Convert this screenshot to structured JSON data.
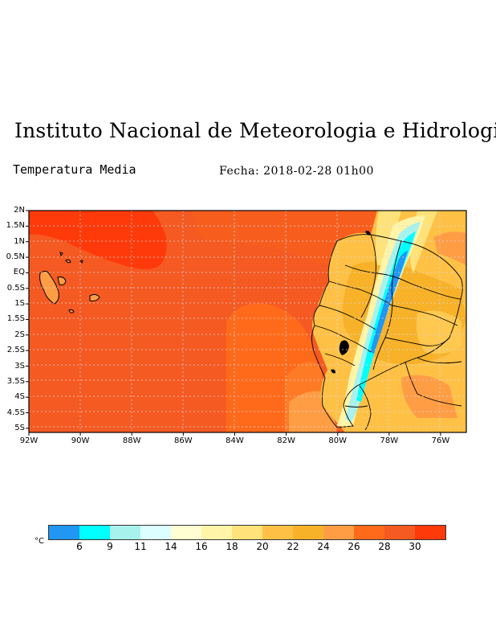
{
  "header": {
    "title": "Instituto Nacional de Meteorologia e Hidrologia",
    "subtitle": "Temperatura Media",
    "date": "Fecha: 2018-02-28 01h00"
  },
  "map": {
    "lat_ticks": [
      "2N",
      "1.5N",
      "1N",
      "0.5N",
      "EQ",
      "0.5S",
      "1S",
      "1.5S",
      "2S",
      "2.5S",
      "3S",
      "3.5S",
      "4S",
      "4.5S",
      "5S"
    ],
    "lon_ticks": [
      "92W",
      "90W",
      "88W",
      "86W",
      "84W",
      "82W",
      "80W",
      "78W",
      "76W"
    ],
    "lon_range": [
      -92,
      -75
    ],
    "lat_range": [
      -5.2,
      2
    ],
    "grid": true
  },
  "colorbar": {
    "unit": "°C",
    "labels": [
      "6",
      "9",
      "11",
      "14",
      "16",
      "18",
      "20",
      "22",
      "24",
      "26",
      "28",
      "30"
    ],
    "colors": [
      "#2196f3",
      "#00ffff",
      "#a8f2ee",
      "#dcfefe",
      "#fffdd2",
      "#fff4a8",
      "#ffe27a",
      "#ffc145",
      "#f7b22a",
      "#ff9d45",
      "#ff6a1a",
      "#f55a22",
      "#ff3a0a"
    ]
  }
}
